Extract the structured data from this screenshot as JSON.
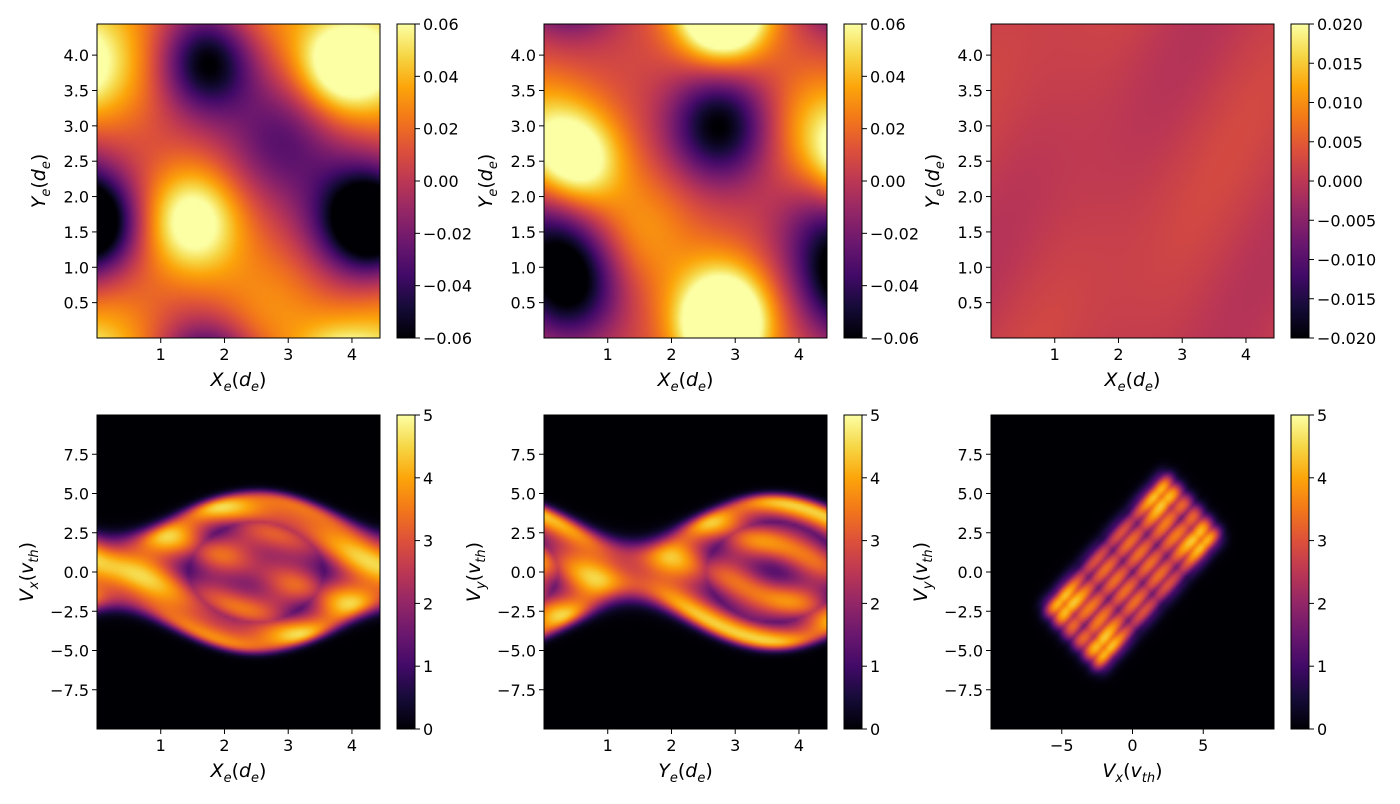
{
  "chart_data": [
    {
      "type": "heatmap",
      "xlabel": "X",
      "xlabel_sub": "e",
      "ylabel": "Y",
      "ylabel_sub": "e",
      "unit_letter": "d",
      "xlim": [
        0,
        4.44
      ],
      "ylim": [
        0,
        4.44
      ],
      "xticks": [
        1,
        2,
        3,
        4
      ],
      "xtick_labels": [
        "1",
        "2",
        "3",
        "4"
      ],
      "yticks": [
        0.5,
        1.0,
        1.5,
        2.0,
        2.5,
        3.0,
        3.5,
        4.0
      ],
      "ytick_labels": [
        "0.5",
        "1.0",
        "1.5",
        "2.0",
        "2.5",
        "3.0",
        "3.5",
        "4.0"
      ],
      "colorbar": {
        "range": [
          -0.06,
          0.06
        ],
        "ticks": [
          -0.06,
          -0.04,
          -0.02,
          0.0,
          0.02,
          0.04,
          0.06
        ],
        "tick_labels": [
          "−0.06",
          "−0.04",
          "−0.02",
          "0.00",
          "0.02",
          "0.04",
          "0.06"
        ]
      },
      "field": {
        "base": 0.005,
        "blobs": [
          {
            "x": 1.5,
            "y": 1.65,
            "v": 0.066,
            "s": 0.55
          },
          {
            "x": 3.8,
            "y": 3.85,
            "v": 0.066,
            "s": 0.5
          },
          {
            "x": 1.75,
            "y": 3.9,
            "v": -0.07,
            "s": 0.5
          },
          {
            "x": 4.1,
            "y": 1.7,
            "v": -0.07,
            "s": 0.55
          },
          {
            "x": 0.0,
            "y": 1.6,
            "v": -0.05,
            "s": 0.45
          },
          {
            "x": 2.9,
            "y": 2.8,
            "v": -0.035,
            "s": 0.6
          },
          {
            "x": 0.2,
            "y": 3.7,
            "v": 0.03,
            "s": 0.6
          },
          {
            "x": 2.7,
            "y": 0.4,
            "v": 0.025,
            "s": 0.7
          },
          {
            "x": 0.2,
            "y": 0.2,
            "v": 0.02,
            "s": 0.6
          }
        ]
      }
    },
    {
      "type": "heatmap",
      "xlabel": "X",
      "xlabel_sub": "e",
      "ylabel": "Y",
      "ylabel_sub": "e",
      "unit_letter": "d",
      "xlim": [
        0,
        4.44
      ],
      "ylim": [
        0,
        4.44
      ],
      "xticks": [
        1,
        2,
        3,
        4
      ],
      "xtick_labels": [
        "1",
        "2",
        "3",
        "4"
      ],
      "yticks": [
        0.5,
        1.0,
        1.5,
        2.0,
        2.5,
        3.0,
        3.5,
        4.0
      ],
      "ytick_labels": [
        "0.5",
        "1.0",
        "1.5",
        "2.0",
        "2.5",
        "3.0",
        "3.5",
        "4.0"
      ],
      "colorbar": {
        "range": [
          -0.06,
          0.06
        ],
        "ticks": [
          -0.06,
          -0.04,
          -0.02,
          0.0,
          0.02,
          0.04,
          0.06
        ],
        "tick_labels": [
          "−0.06",
          "−0.04",
          "−0.02",
          "0.00",
          "0.02",
          "0.04",
          "0.06"
        ]
      },
      "field": {
        "base": 0.008,
        "blobs": [
          {
            "x": 0.5,
            "y": 2.5,
            "v": 0.066,
            "s": 0.5
          },
          {
            "x": 2.8,
            "y": 0.35,
            "v": 0.066,
            "s": 0.55
          },
          {
            "x": 2.8,
            "y": 4.5,
            "v": 0.05,
            "s": 0.45
          },
          {
            "x": 2.75,
            "y": 3.0,
            "v": -0.07,
            "s": 0.55
          },
          {
            "x": 0.4,
            "y": 0.75,
            "v": -0.07,
            "s": 0.55
          },
          {
            "x": 4.5,
            "y": 1.5,
            "v": -0.04,
            "s": 0.6
          },
          {
            "x": 4.3,
            "y": 3.0,
            "v": 0.03,
            "s": 0.6
          },
          {
            "x": 1.5,
            "y": 1.5,
            "v": 0.025,
            "s": 0.6
          }
        ]
      }
    },
    {
      "type": "heatmap",
      "xlabel": "X",
      "xlabel_sub": "e",
      "ylabel": "Y",
      "ylabel_sub": "e",
      "unit_letter": "d",
      "xlim": [
        0,
        4.44
      ],
      "ylim": [
        0,
        4.44
      ],
      "xticks": [
        1,
        2,
        3,
        4
      ],
      "xtick_labels": [
        "1",
        "2",
        "3",
        "4"
      ],
      "yticks": [
        0.5,
        1.0,
        1.5,
        2.0,
        2.5,
        3.0,
        3.5,
        4.0
      ],
      "ytick_labels": [
        "0.5",
        "1.0",
        "1.5",
        "2.0",
        "2.5",
        "3.0",
        "3.5",
        "4.0"
      ],
      "colorbar": {
        "range": [
          -0.02,
          0.02
        ],
        "ticks": [
          -0.02,
          -0.015,
          -0.01,
          -0.005,
          0.0,
          0.005,
          0.01,
          0.015,
          0.02
        ],
        "tick_labels": [
          "−0.020",
          "−0.015",
          "−0.010",
          "−0.005",
          "0.000",
          "0.005",
          "0.010",
          "0.015",
          "0.020"
        ]
      },
      "field": {
        "base": 0.001,
        "waves": [
          {
            "kx": 1.4,
            "ky": -1.4,
            "amp": 0.0012
          },
          {
            "kx": 2.8,
            "ky": -1.0,
            "amp": 0.0006
          }
        ]
      }
    },
    {
      "type": "heatmap",
      "xlabel": "X",
      "xlabel_sub": "e",
      "ylabel": "V",
      "ylabel_sub": "x",
      "unit_letter": "d",
      "v_unit": "th",
      "xlim": [
        0,
        4.44
      ],
      "ylim": [
        -10,
        10
      ],
      "xticks": [
        1,
        2,
        3,
        4
      ],
      "xtick_labels": [
        "1",
        "2",
        "3",
        "4"
      ],
      "yticks": [
        -7.5,
        -5.0,
        -2.5,
        0.0,
        2.5,
        5.0,
        7.5
      ],
      "ytick_labels": [
        "−7.5",
        "−5.0",
        "−2.5",
        "0.0",
        "2.5",
        "5.0",
        "7.5"
      ],
      "colorbar": {
        "range": [
          0,
          5
        ],
        "ticks": [
          0,
          1,
          2,
          3,
          4,
          5
        ],
        "tick_labels": [
          "0",
          "1",
          "2",
          "3",
          "4",
          "5"
        ]
      },
      "field": {
        "kind": "phase",
        "period": 4.44,
        "phase": 2.5,
        "vmax": 5.2,
        "amp": 0.8,
        "center": 0.5
      }
    },
    {
      "type": "heatmap",
      "xlabel": "Y",
      "xlabel_sub": "e",
      "ylabel": "V",
      "ylabel_sub": "y",
      "unit_letter": "d",
      "v_unit": "th",
      "xlim": [
        0,
        4.44
      ],
      "ylim": [
        -10,
        10
      ],
      "xticks": [
        1,
        2,
        3,
        4
      ],
      "xtick_labels": [
        "1",
        "2",
        "3",
        "4"
      ],
      "yticks": [
        -7.5,
        -5.0,
        -2.5,
        0.0,
        2.5,
        5.0,
        7.5
      ],
      "ytick_labels": [
        "−7.5",
        "−5.0",
        "−2.5",
        "0.0",
        "2.5",
        "5.0",
        "7.5"
      ],
      "colorbar": {
        "range": [
          0,
          5
        ],
        "ticks": [
          0,
          1,
          2,
          3,
          4,
          5
        ],
        "tick_labels": [
          "0",
          "1",
          "2",
          "3",
          "4",
          "5"
        ]
      },
      "field": {
        "kind": "phase",
        "period": 4.44,
        "phase": 3.6,
        "vmax": 5.0,
        "amp": 0.9,
        "center": 1.6
      }
    },
    {
      "type": "heatmap",
      "xlabel": "V",
      "xlabel_sub": "x",
      "ylabel": "V",
      "ylabel_sub": "y",
      "v_unit": "th",
      "xlim": [
        -10,
        10
      ],
      "ylim": [
        -10,
        10
      ],
      "xticks": [
        -5,
        0,
        5
      ],
      "xtick_labels": [
        "−5",
        "0",
        "5"
      ],
      "yticks": [
        -7.5,
        -5.0,
        -2.5,
        0.0,
        2.5,
        5.0,
        7.5
      ],
      "ytick_labels": [
        "−7.5",
        "−5.0",
        "−2.5",
        "0.0",
        "2.5",
        "5.0",
        "7.5"
      ],
      "colorbar": {
        "range": [
          0,
          5
        ],
        "ticks": [
          0,
          1,
          2,
          3,
          4,
          5
        ],
        "tick_labels": [
          "0",
          "1",
          "2",
          "3",
          "4",
          "5"
        ]
      },
      "field": {
        "kind": "box",
        "angle_deg": 45,
        "half_u": 6.2,
        "half_w": 2.9
      }
    }
  ]
}
